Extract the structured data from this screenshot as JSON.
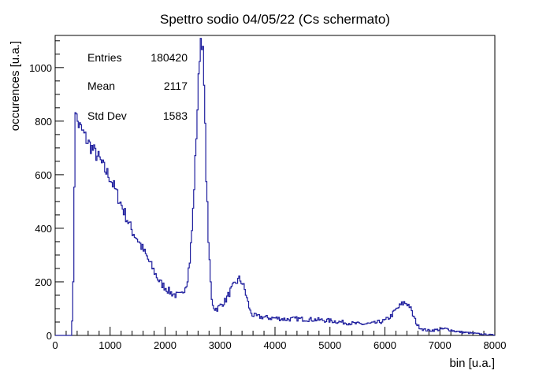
{
  "chart_data": {
    "type": "line",
    "title": "Spettro sodio 04/05/22 (Cs schermato)",
    "xlabel": "bin [u.a.]",
    "ylabel": "occurences [u.a.]",
    "xlim": [
      0,
      8000
    ],
    "ylim": [
      0,
      1120
    ],
    "grid": false,
    "line_color": "#1f1f9e",
    "x_ticks": [
      0,
      1000,
      2000,
      3000,
      4000,
      5000,
      6000,
      7000,
      8000
    ],
    "y_ticks": [
      0,
      200,
      400,
      600,
      800,
      1000
    ],
    "stats": {
      "entries_label": "Entries",
      "entries_value": "180420",
      "mean_label": "Mean",
      "mean_value": "2117",
      "std_label": "Std Dev",
      "std_value": "1583"
    },
    "series": [
      {
        "x": [
          0,
          300,
          340,
          360,
          380,
          420,
          500,
          600,
          700,
          800,
          900,
          1000,
          1100,
          1200,
          1300,
          1400,
          1500,
          1600,
          1700,
          1800,
          1900,
          2000,
          2100,
          2200,
          2300,
          2400,
          2450,
          2500,
          2550,
          2600,
          2630,
          2650,
          2680,
          2700,
          2720,
          2750,
          2800,
          2850,
          2900,
          2950,
          3000,
          3100,
          3200,
          3300,
          3350,
          3400,
          3450,
          3500,
          3550,
          3600,
          3700,
          3800,
          3900,
          4000,
          4200,
          4400,
          4600,
          4800,
          5000,
          5200,
          5400,
          5600,
          5800,
          6000,
          6100,
          6200,
          6300,
          6350,
          6400,
          6450,
          6500,
          6600,
          6700,
          6800,
          6900,
          7000,
          7100,
          7200,
          7300,
          7400,
          7500,
          7600,
          7700,
          7800,
          7900,
          8000
        ],
        "y": [
          0,
          0,
          250,
          880,
          820,
          790,
          760,
          720,
          690,
          660,
          620,
          590,
          540,
          490,
          440,
          390,
          360,
          320,
          280,
          240,
          200,
          180,
          160,
          150,
          150,
          200,
          280,
          420,
          650,
          900,
          1050,
          1110,
          1100,
          1000,
          850,
          600,
          300,
          130,
          100,
          100,
          110,
          130,
          170,
          200,
          210,
          200,
          170,
          130,
          90,
          75,
          70,
          68,
          65,
          65,
          60,
          62,
          60,
          58,
          55,
          50,
          45,
          42,
          45,
          55,
          70,
          95,
          115,
          122,
          120,
          110,
          80,
          35,
          22,
          18,
          20,
          22,
          25,
          20,
          15,
          12,
          10,
          8,
          6,
          4,
          3,
          2
        ]
      }
    ]
  }
}
